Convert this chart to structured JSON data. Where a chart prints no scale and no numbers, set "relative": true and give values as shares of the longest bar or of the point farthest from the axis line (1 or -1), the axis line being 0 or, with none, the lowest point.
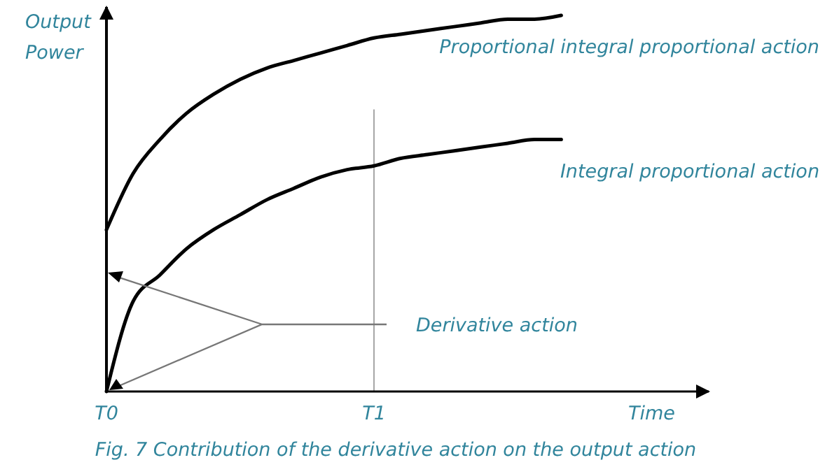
{
  "chart_data": {
    "type": "line",
    "relative": true,
    "title": "Fig. 7 Contribution of the derivative action on the output action",
    "xlabel": "Time",
    "ylabel": "Output Power",
    "categories": [
      "T0",
      null,
      null,
      null,
      null,
      null,
      null,
      null,
      null,
      null,
      "T1",
      null,
      null,
      null,
      null,
      null,
      null,
      null,
      null,
      null,
      null,
      null,
      null
    ],
    "series": [
      {
        "name": "Proportional integral proportional action",
        "color": "#000000",
        "values": [
          0.43,
          0.58,
          0.67,
          0.74,
          0.79,
          0.83,
          0.86,
          0.88,
          0.9,
          0.92,
          0.94,
          0.95,
          0.96,
          0.97,
          0.98,
          0.99,
          0.99,
          1.0,
          null,
          null,
          null,
          null,
          null
        ]
      },
      {
        "name": "Integral proportional action",
        "color": "#000000",
        "values": [
          0,
          0.24,
          0.31,
          0.38,
          0.43,
          0.47,
          0.51,
          0.54,
          0.57,
          0.59,
          0.6,
          0.62,
          0.63,
          0.64,
          0.65,
          0.66,
          0.67,
          0.67,
          null,
          null,
          null,
          null,
          null
        ]
      }
    ],
    "ref_lines": [
      {
        "axis": "x",
        "value": "T1",
        "color": "#a6a6a6"
      }
    ],
    "annotations": [
      "Derivative action"
    ]
  }
}
